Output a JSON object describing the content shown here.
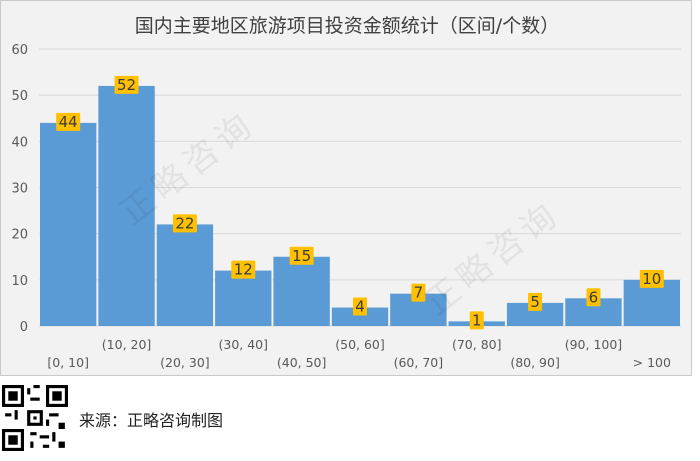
{
  "chart_data": {
    "type": "bar",
    "title": "国内主要地区旅游项目投资金额统计（区间/个数）",
    "categories": [
      "[0, 10]",
      "(10, 20]",
      "(20, 30]",
      "(30, 40]",
      "(40, 50]",
      "(50, 60]",
      "(60, 70]",
      "(70, 80]",
      "(80, 90]",
      "(90, 100]",
      "> 100"
    ],
    "values": [
      44,
      52,
      22,
      12,
      15,
      4,
      7,
      1,
      5,
      6,
      10
    ],
    "ylim": [
      0,
      60
    ],
    "yticks": [
      "0",
      "10",
      "20",
      "30",
      "40",
      "50",
      "60"
    ],
    "xlabel": "",
    "ylabel": "",
    "grid": true,
    "colors": {
      "bar": "#5b9bd5",
      "label_bg": "#ffc000",
      "grid": "#d9d9d9",
      "text": "#595959"
    }
  },
  "watermark": "正略咨询",
  "footer": {
    "source": "来源：正略咨询制图"
  }
}
